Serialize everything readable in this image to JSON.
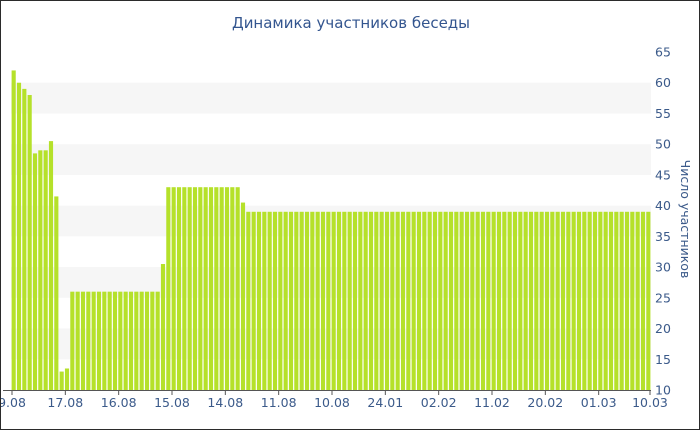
{
  "colors": {
    "bar": "#b5e12a",
    "band": "#f6f6f6",
    "text": "#3b5a8a",
    "title": "#33558f",
    "axis": "#555555",
    "border": "#2b2b2b"
  },
  "chart_data": {
    "type": "bar",
    "title": "Динамика участников беседы",
    "xlabel": "",
    "ylabel": "Число участников",
    "ylim": [
      10,
      65
    ],
    "yticks": [
      10,
      15,
      20,
      25,
      30,
      35,
      40,
      45,
      50,
      55,
      60,
      65
    ],
    "y_axis_position": "right",
    "grid": "alternating horizontal bands",
    "legend": "none",
    "x_tick_labels": [
      {
        "index": 0,
        "label": "9.08"
      },
      {
        "index": 10,
        "label": "17.08"
      },
      {
        "index": 20,
        "label": "16.08"
      },
      {
        "index": 30,
        "label": "15.08"
      },
      {
        "index": 40,
        "label": "14.08"
      },
      {
        "index": 50,
        "label": "11.08"
      },
      {
        "index": 60,
        "label": "10.08"
      },
      {
        "index": 70,
        "label": "24.01"
      },
      {
        "index": 80,
        "label": "02.02"
      },
      {
        "index": 90,
        "label": "11.02"
      },
      {
        "index": 100,
        "label": "20.02"
      },
      {
        "index": 110,
        "label": "01.03"
      },
      {
        "index": 120,
        "label": "10.03"
      }
    ],
    "values": [
      62,
      60,
      59,
      58,
      48.5,
      49,
      49,
      50.5,
      41.5,
      13,
      13.5,
      26,
      26,
      26,
      26,
      26,
      26,
      26,
      26,
      26,
      26,
      26,
      26,
      26,
      26,
      26,
      26,
      26,
      30.5,
      43,
      43,
      43,
      43,
      43,
      43,
      43,
      43,
      43,
      43,
      43,
      43,
      43,
      43,
      40.5,
      39,
      39,
      39,
      39,
      39,
      39,
      39,
      39,
      39,
      39,
      39,
      39,
      39,
      39,
      39,
      39,
      39,
      39,
      39,
      39,
      39,
      39,
      39,
      39,
      39,
      39,
      39,
      39,
      39,
      39,
      39,
      39,
      39,
      39,
      39,
      39,
      39,
      39,
      39,
      39,
      39,
      39,
      39,
      39,
      39,
      39,
      39,
      39,
      39,
      39,
      39,
      39,
      39,
      39,
      39,
      39,
      39,
      39,
      39,
      39,
      39,
      39,
      39,
      39,
      39,
      39,
      39,
      39,
      39,
      39,
      39,
      39,
      39,
      39,
      39,
      39
    ]
  }
}
